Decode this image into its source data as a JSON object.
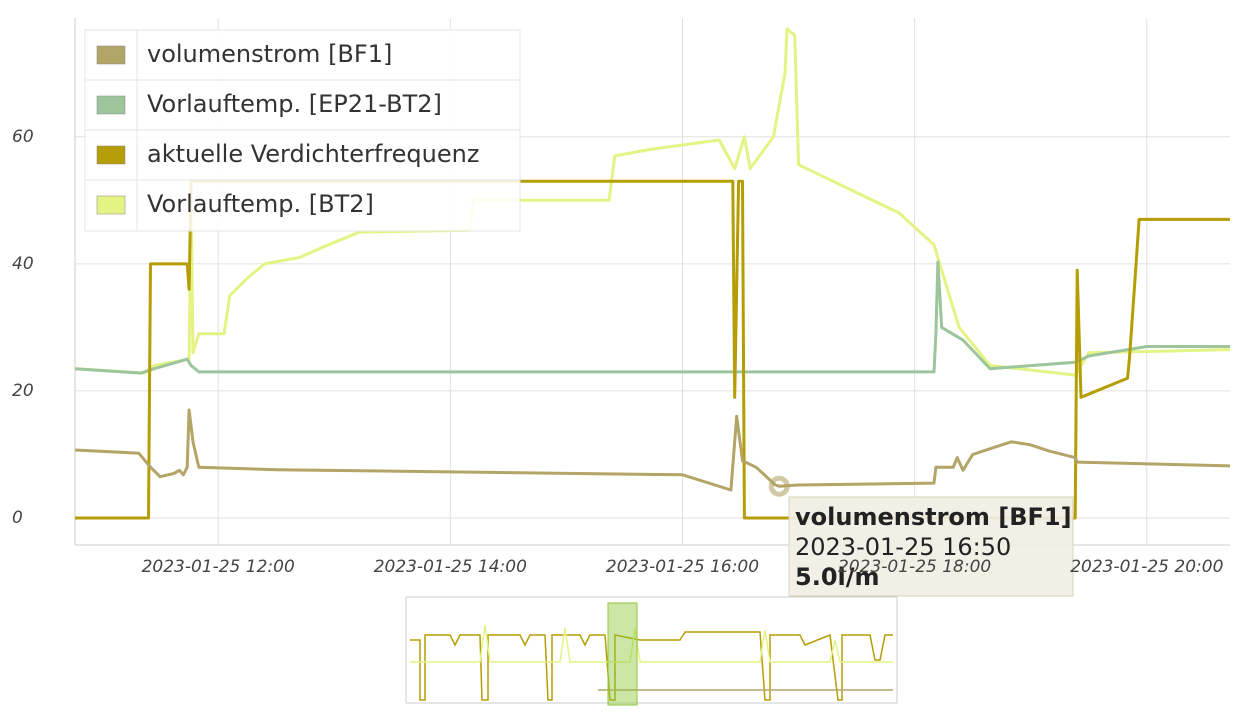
{
  "chart_data": {
    "type": "line",
    "xlim": [
      "2023-01-25 10:46",
      "2023-01-25 20:43"
    ],
    "xticks": [
      "2023-01-25 12:00",
      "2023-01-25 14:00",
      "2023-01-25 16:00",
      "2023-01-25 18:00",
      "2023-01-25 20:00"
    ],
    "ylim": [
      -4.25,
      78.7
    ],
    "yticks": [
      0,
      20,
      40,
      60
    ],
    "grid": true,
    "legend": "upper left",
    "series": [
      {
        "name": "volumenstrom [BF1]",
        "color": "#b3a468",
        "x": [
          "2023-01-25 10:46",
          "2023-01-25 11:19",
          "2023-01-25 11:25",
          "2023-01-25 11:30",
          "2023-01-25 11:37",
          "2023-01-25 11:40",
          "2023-01-25 11:42",
          "2023-01-25 11:44",
          "2023-01-25 11:45",
          "2023-01-25 11:47",
          "2023-01-25 11:50",
          "2023-01-25 12:30",
          "2023-01-25 16:00",
          "2023-01-25 16:25",
          "2023-01-25 16:28",
          "2023-01-25 16:31",
          "2023-01-25 16:38",
          "2023-01-25 16:48",
          "2023-01-25 16:50",
          "2023-01-25 17:00",
          "2023-01-25 18:10",
          "2023-01-25 18:11",
          "2023-01-25 18:20",
          "2023-01-25 18:22",
          "2023-01-25 18:25",
          "2023-01-25 18:30",
          "2023-01-25 18:40",
          "2023-01-25 18:50",
          "2023-01-25 19:00",
          "2023-01-25 19:10",
          "2023-01-25 19:23",
          "2023-01-25 19:24",
          "2023-01-25 20:43"
        ],
        "values": [
          10.7,
          10.2,
          8,
          6.5,
          7,
          7.5,
          6.8,
          8,
          17,
          12,
          8,
          7.6,
          6.8,
          4.4,
          16,
          9,
          8,
          5.2,
          5.0,
          5.2,
          5.5,
          8,
          8,
          9.5,
          7.5,
          10,
          11,
          12,
          11.5,
          10.5,
          9.5,
          8.8,
          8.2
        ]
      },
      {
        "name": "Vorlauftemp. [EP21-BT2]",
        "color": "#9cc59b",
        "x": [
          "2023-01-25 10:46",
          "2023-01-25 11:20",
          "2023-01-25 11:27",
          "2023-01-25 11:44",
          "2023-01-25 11:46",
          "2023-01-25 11:50",
          "2023-01-25 18:10",
          "2023-01-25 18:11",
          "2023-01-25 18:12",
          "2023-01-25 18:14",
          "2023-01-25 18:25",
          "2023-01-25 18:39",
          "2023-01-25 19:23",
          "2023-01-25 19:30",
          "2023-01-25 20:00",
          "2023-01-25 20:43"
        ],
        "values": [
          23.5,
          22.8,
          23.5,
          25,
          24,
          23,
          23,
          29,
          40.3,
          30,
          28,
          23.5,
          24.5,
          25.5,
          27,
          27
        ]
      },
      {
        "name": "aktuelle Verdichterfrequenz",
        "color": "#b59d05",
        "x": [
          "2023-01-25 10:46",
          "2023-01-25 11:24",
          "2023-01-25 11:25",
          "2023-01-25 11:44",
          "2023-01-25 11:45",
          "2023-01-25 11:46",
          "2023-01-25 16:26",
          "2023-01-25 16:27",
          "2023-01-25 16:29",
          "2023-01-25 16:31",
          "2023-01-25 16:32",
          "2023-01-25 19:23",
          "2023-01-25 19:24",
          "2023-01-25 19:26",
          "2023-01-25 19:50",
          "2023-01-25 19:51",
          "2023-01-25 19:54",
          "2023-01-25 19:56",
          "2023-01-25 20:43"
        ],
        "values": [
          0,
          0,
          40,
          40,
          36,
          53,
          53,
          19,
          53,
          53,
          0,
          0,
          39,
          19,
          22,
          25,
          38,
          47,
          47
        ]
      },
      {
        "name": "Vorlauftemp. [BT2]",
        "color": "#e4f383",
        "x": [
          "2023-01-25 10:46",
          "2023-01-25 11:22",
          "2023-01-25 11:27",
          "2023-01-25 11:45",
          "2023-01-25 11:46",
          "2023-01-25 11:47",
          "2023-01-25 11:50",
          "2023-01-25 12:03",
          "2023-01-25 12:06",
          "2023-01-25 12:16",
          "2023-01-25 12:24",
          "2023-01-25 12:42",
          "2023-01-25 12:57",
          "2023-01-25 13:13",
          "2023-01-25 14:10",
          "2023-01-25 14:12",
          "2023-01-25 15:22",
          "2023-01-25 15:25",
          "2023-01-25 15:43",
          "2023-01-25 16:19",
          "2023-01-25 16:27",
          "2023-01-25 16:32",
          "2023-01-25 16:35",
          "2023-01-25 16:47",
          "2023-01-25 16:50",
          "2023-01-25 16:53",
          "2023-01-25 16:54",
          "2023-01-25 16:58",
          "2023-01-25 17:00",
          "2023-01-25 17:52",
          "2023-01-25 18:10",
          "2023-01-25 18:13",
          "2023-01-25 18:23",
          "2023-01-25 18:39",
          "2023-01-25 19:23",
          "2023-01-25 19:30",
          "2023-01-25 20:43"
        ],
        "values": [
          23.5,
          22.8,
          24,
          25,
          50,
          26,
          29,
          29,
          35,
          38,
          40,
          41,
          43,
          45,
          45.3,
          50,
          50,
          57,
          58,
          59.5,
          55,
          60,
          55,
          60,
          65,
          70,
          77,
          76,
          55.6,
          48,
          43,
          40,
          30,
          24,
          22.5,
          26,
          26.5
        ]
      }
    ],
    "tooltip": {
      "name": "volumenstrom [BF1]",
      "x": "2023-01-25 16:50",
      "value": 5.0,
      "value_label": "5.0l/m"
    }
  }
}
